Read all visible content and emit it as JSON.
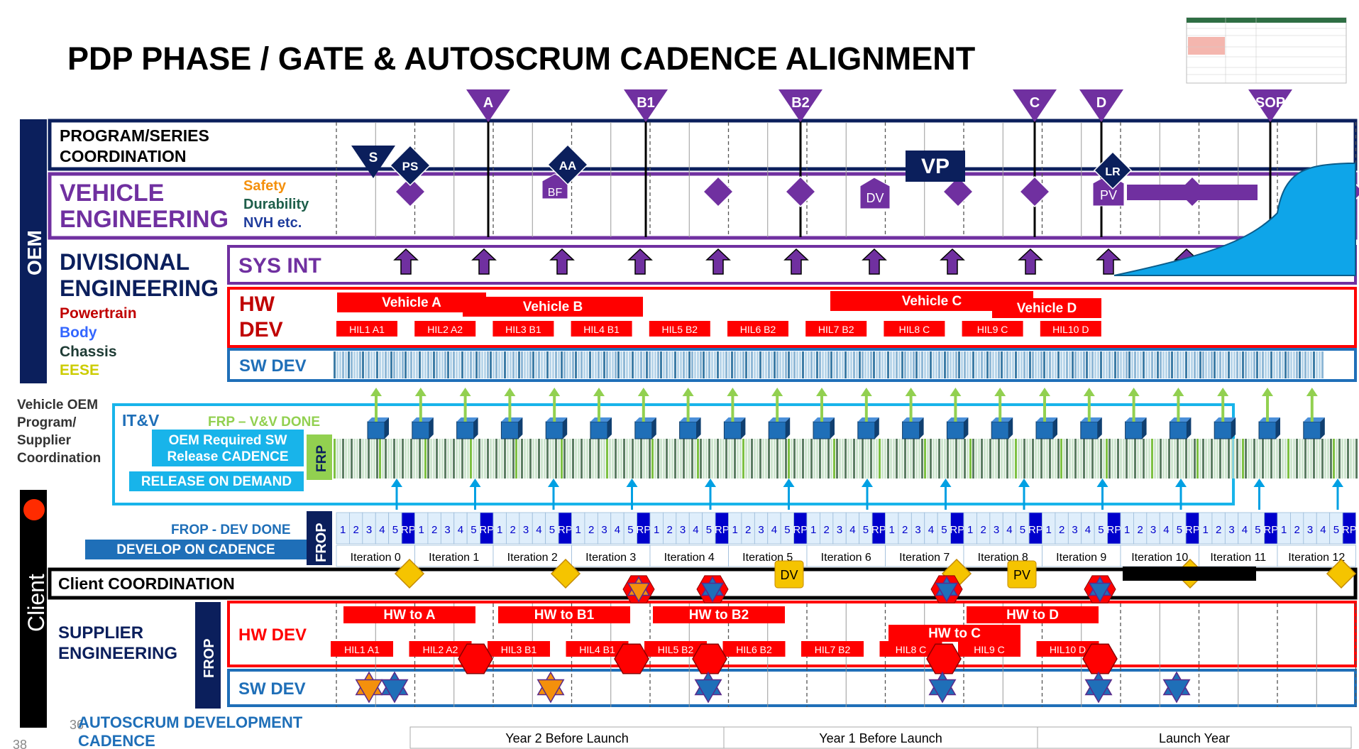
{
  "title": "PDP PHASE / GATE & AUTOSCRUM CADENCE ALIGNMENT",
  "gates": [
    "A",
    "B1",
    "B2",
    "C",
    "D",
    "SOP"
  ],
  "milestones": {
    "s": "S",
    "ps": "PS",
    "aa": "AA",
    "bf": "BF",
    "vp": "VP",
    "dv": "DV",
    "lr": "LR",
    "pv": "PV"
  },
  "labels": {
    "oem": "OEM",
    "client": "Client",
    "program_1": "PROGRAM/SERIES",
    "program_2": "COORDINATION",
    "vehicle_1": "VEHICLE",
    "vehicle_2": "ENGINEERING",
    "safety": "Safety",
    "durability": "Durability",
    "nvh": "NVH etc.",
    "divisional_1": "DIVISIONAL",
    "divisional_2": "ENGINEERING",
    "powertrain": "Powertrain",
    "body": "Body",
    "chassis": "Chassis",
    "eese": "EESE",
    "sys_int": "SYS INT",
    "hw": "HW",
    "dev": "DEV",
    "sw_dev": "SW DEV",
    "coord_1": "Vehicle OEM",
    "coord_2": "Program/",
    "coord_3": "Supplier",
    "coord_4": "Coordination",
    "itv": "IT&V",
    "frp_done": "FRP – V&V DONE",
    "oem_req_1": "OEM Required SW",
    "oem_req_2": "Release CADENCE",
    "release_on_demand": "RELEASE ON DEMAND",
    "frp": "FRP",
    "frop_done": "FROP - DEV DONE",
    "develop_on_cadence": "DEVELOP ON CADENCE",
    "frop": "FROP",
    "client_coord": "Client COORDINATION",
    "supplier_1": "SUPPLIER",
    "supplier_2": "ENGINEERING",
    "hw_dev": "HW DEV",
    "sw_dev2": "SW DEV",
    "autoscrum_1": "AUTOSCRUM DEVELOPMENT",
    "autoscrum_2": "CADENCE",
    "page_num": "38",
    "page_num2": "36"
  },
  "oem_vehicle_bars": [
    "Vehicle A",
    "Vehicle B",
    "Vehicle C",
    "Vehicle D"
  ],
  "oem_hil": [
    "HIL1 A1",
    "HIL2 A2",
    "HIL3 B1",
    "HIL4 B1",
    "HIL5 B2",
    "HIL6 B2",
    "HIL7 B2",
    "HIL8 C",
    "HIL9 C",
    "HIL10 D"
  ],
  "sprint_cells": [
    "1",
    "2",
    "3",
    "4",
    "5",
    "RP"
  ],
  "iterations": [
    "Iteration 0",
    "Iteration 1",
    "Iteration 2",
    "Iteration 3",
    "Iteration 4",
    "Iteration 5",
    "Iteration 6",
    "Iteration 7",
    "Iteration 8",
    "Iteration 9",
    "Iteration 10",
    "Iteration 11",
    "Iteration 12"
  ],
  "supplier_hw_bars": [
    "HW to A",
    "HW to B1",
    "HW to B2",
    "HW to C",
    "HW to D"
  ],
  "supplier_hil": [
    "HIL1 A1",
    "HIL2 A2",
    "HIL3 B1",
    "HIL4 B1",
    "HIL5 B2",
    "HIL6 B2",
    "HIL7 B2",
    "HIL8 C",
    "HIL9 C",
    "HIL10 D"
  ],
  "years": [
    "Year 2 Before Launch",
    "Year 1 Before Launch",
    "Launch Year"
  ],
  "colors": {
    "navy": "#1a1a5e",
    "dark_blue": "#0b1f5c",
    "purple": "#7030a0",
    "red": "#ff0000",
    "blue": "#1f6fb8",
    "light_blue": "#00b0f0",
    "green": "#92d050",
    "orange": "#f4900c",
    "yellow": "#f5c400",
    "cyan": "#18b4ea"
  }
}
